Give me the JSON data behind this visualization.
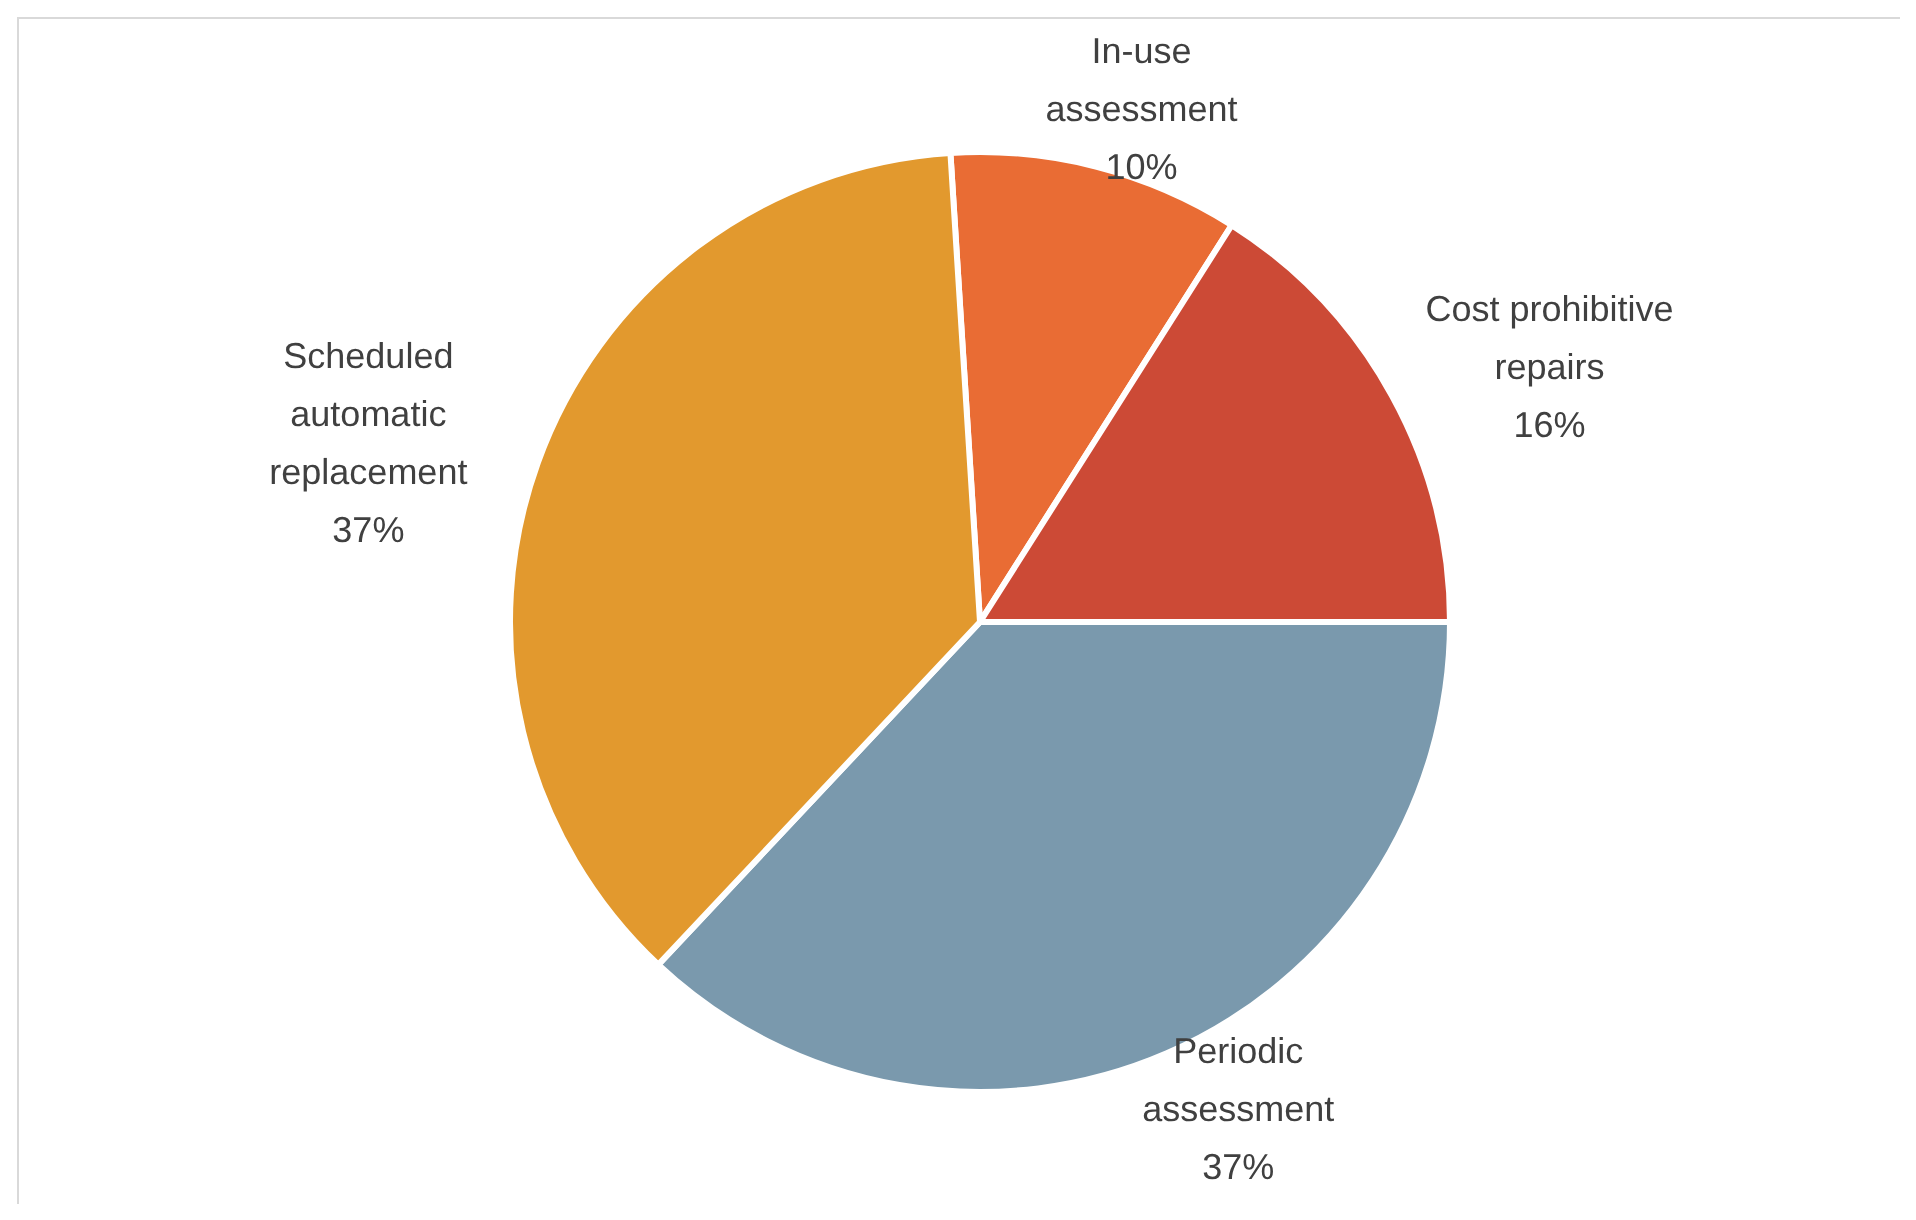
{
  "chart_data": {
    "type": "pie",
    "categories": [
      "In-use assessment",
      "Cost prohibitive repairs",
      "Periodic assessment",
      "Scheduled automatic replacement"
    ],
    "values": [
      10,
      16,
      37,
      37
    ],
    "colors": [
      "#e96c34",
      "#cc4a36",
      "#7a99ad",
      "#e2992e"
    ],
    "value_labels": [
      "10%",
      "16%",
      "37%",
      "37%"
    ]
  }
}
